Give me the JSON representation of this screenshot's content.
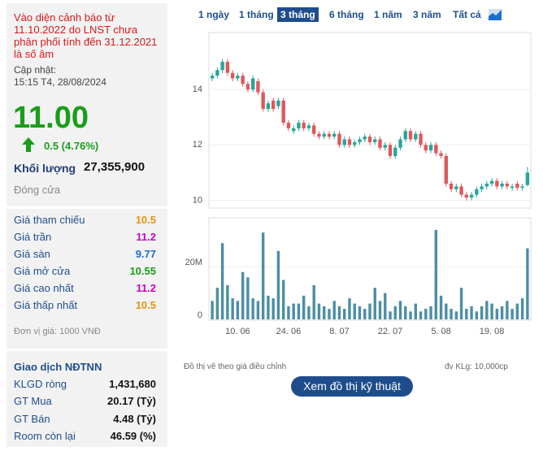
{
  "panel": {
    "warning": "Vào diện cảnh báo từ 11.10.2022 do LNST chưa phân phối tính đến 31.12.2021 là số âm",
    "updated_label": "Cập nhật:",
    "updated_time": "15:15 T4, 28/08/2024",
    "price": "11.00",
    "change": "0.5 (4.76%)",
    "volume_label": "Khối lượng",
    "volume": "27,355,900",
    "status": "Đóng cửa",
    "prices": [
      {
        "label": "Giá tham chiếu",
        "value": "10.5",
        "color": "#e8930c"
      },
      {
        "label": "Giá trần",
        "value": "11.2",
        "color": "#c800c8"
      },
      {
        "label": "Giá sàn",
        "value": "9.77",
        "color": "#1b6fd0"
      },
      {
        "label": "Giá mở cửa",
        "value": "10.55",
        "color": "#1a9d1a"
      },
      {
        "label": "Giá cao nhất",
        "value": "11.2",
        "color": "#c800c8"
      },
      {
        "label": "Giá thấp nhất",
        "value": "10.5",
        "color": "#e8930c"
      }
    ],
    "unit_note": "Đơn vị giá: 1000 VNĐ",
    "foreign": {
      "title": "Giao dịch NĐTNN",
      "rows": [
        {
          "label": "KLGD ròng",
          "value": "1,431,680"
        },
        {
          "label": "GT Mua",
          "value": "20.17 (Tỷ)"
        },
        {
          "label": "GT Bán",
          "value": "4.48 (Tỷ)"
        },
        {
          "label": "Room còn lại",
          "value": "46.59 (%)"
        }
      ]
    }
  },
  "tabs": {
    "items": [
      "1 ngày",
      "1 tháng",
      "3 tháng",
      "6 tháng",
      "1 năm",
      "3 năm",
      "Tất cả"
    ],
    "active": 2
  },
  "chart_note": "Đồ thị vẽ theo giá điều chỉnh",
  "volume_unit": "đv KLg: 10,000cp",
  "button": "Xem đồ thị kỹ thuật",
  "chart_data": [
    {
      "type": "candlestick",
      "up_color": "#26a69a",
      "down_color": "#e0575b",
      "ylim": [
        9.75,
        16
      ],
      "yticks": [
        10,
        12,
        14
      ],
      "grid": true,
      "open": [
        14.4,
        14.5,
        14.7,
        15.0,
        14.6,
        14.4,
        14.5,
        14.2,
        14.0,
        14.3,
        13.9,
        13.3,
        13.6,
        13.4,
        13.6,
        12.8,
        12.5,
        12.6,
        12.8,
        12.6,
        12.7,
        12.4,
        12.3,
        12.4,
        12.3,
        12.4,
        12.0,
        12.2,
        12.0,
        12.1,
        12.2,
        12.3,
        12.1,
        12.2,
        11.9,
        12.0,
        11.6,
        11.9,
        12.2,
        12.5,
        12.2,
        12.4,
        12.0,
        11.8,
        12.0,
        11.7,
        11.6,
        10.6,
        10.4,
        10.5,
        10.2,
        10.1,
        10.2,
        10.4,
        10.5,
        10.6,
        10.7,
        10.5,
        10.6,
        10.45,
        10.6,
        10.45,
        10.55
      ],
      "high": [
        14.6,
        14.8,
        15.1,
        15.1,
        14.7,
        14.6,
        14.6,
        14.3,
        14.5,
        14.4,
        14.0,
        13.6,
        13.7,
        13.7,
        13.7,
        12.9,
        12.7,
        12.9,
        12.9,
        12.8,
        12.8,
        12.5,
        12.5,
        12.5,
        12.5,
        12.5,
        12.3,
        12.3,
        12.2,
        12.3,
        12.4,
        12.4,
        12.3,
        12.3,
        12.1,
        12.1,
        12.0,
        12.3,
        12.6,
        12.6,
        12.5,
        12.5,
        12.1,
        12.1,
        12.1,
        11.8,
        11.7,
        10.7,
        10.6,
        10.6,
        10.3,
        10.3,
        10.5,
        10.6,
        10.7,
        10.8,
        10.8,
        10.7,
        10.7,
        10.6,
        10.7,
        10.6,
        11.2
      ],
      "low": [
        14.3,
        14.4,
        14.6,
        14.5,
        14.3,
        14.3,
        14.1,
        13.9,
        13.9,
        13.8,
        13.2,
        13.2,
        13.2,
        13.3,
        12.7,
        12.5,
        12.4,
        12.5,
        12.5,
        12.5,
        12.3,
        12.2,
        12.2,
        12.2,
        12.2,
        11.9,
        11.9,
        11.9,
        11.9,
        12.0,
        12.1,
        12.0,
        12.0,
        11.8,
        11.8,
        11.5,
        11.5,
        11.8,
        12.1,
        12.1,
        12.1,
        11.9,
        11.7,
        11.7,
        11.6,
        11.5,
        10.5,
        10.3,
        10.3,
        10.1,
        10.0,
        10.0,
        10.1,
        10.3,
        10.4,
        10.5,
        10.4,
        10.4,
        10.4,
        10.35,
        10.35,
        10.35,
        10.5
      ],
      "close": [
        14.5,
        14.7,
        15.0,
        14.6,
        14.4,
        14.5,
        14.2,
        14.0,
        14.4,
        13.9,
        13.3,
        13.5,
        13.3,
        13.6,
        12.8,
        12.6,
        12.6,
        12.8,
        12.6,
        12.7,
        12.4,
        12.3,
        12.4,
        12.3,
        12.4,
        12.0,
        12.2,
        12.0,
        12.1,
        12.2,
        12.3,
        12.1,
        12.2,
        11.9,
        12.0,
        11.6,
        11.9,
        12.2,
        12.5,
        12.2,
        12.4,
        12.0,
        11.8,
        12.0,
        11.7,
        11.6,
        10.6,
        10.4,
        10.5,
        10.2,
        10.1,
        10.2,
        10.4,
        10.5,
        10.6,
        10.7,
        10.5,
        10.6,
        10.5,
        10.5,
        10.45,
        10.5,
        11.0
      ]
    },
    {
      "type": "bar",
      "color": "#4b8ea6",
      "ylim": [
        0,
        38000000
      ],
      "yticks": [
        0,
        {
          "value": 20000000,
          "label": "20M"
        }
      ],
      "grid": true,
      "categories": [
        null,
        null,
        null,
        null,
        null,
        "10. 06",
        null,
        null,
        null,
        null,
        null,
        null,
        null,
        null,
        null,
        "24. 06",
        null,
        null,
        null,
        null,
        null,
        null,
        null,
        null,
        null,
        "8. 07",
        null,
        null,
        null,
        null,
        null,
        null,
        null,
        null,
        null,
        "22. 07",
        null,
        null,
        null,
        null,
        null,
        null,
        null,
        null,
        null,
        "5. 08",
        null,
        null,
        null,
        null,
        null,
        null,
        null,
        null,
        null,
        "19. 08",
        null,
        null,
        null,
        null,
        null,
        null,
        null
      ],
      "values": [
        7000000,
        12000000,
        29000000,
        13000000,
        8000000,
        7000000,
        18000000,
        16000000,
        8000000,
        7000000,
        33000000,
        9000000,
        8000000,
        26000000,
        15000000,
        5000000,
        6000000,
        6000000,
        9000000,
        5000000,
        13000000,
        6000000,
        5000000,
        4000000,
        7000000,
        5000000,
        4000000,
        8000000,
        6000000,
        5000000,
        4000000,
        6000000,
        12000000,
        7000000,
        10000000,
        3000000,
        5000000,
        7000000,
        5000000,
        3000000,
        6000000,
        3000000,
        4000000,
        5000000,
        34000000,
        9000000,
        6000000,
        4000000,
        3000000,
        12000000,
        4000000,
        5000000,
        3000000,
        5000000,
        7000000,
        6000000,
        4000000,
        5000000,
        7000000,
        4000000,
        6000000,
        8000000,
        27000000
      ]
    }
  ]
}
